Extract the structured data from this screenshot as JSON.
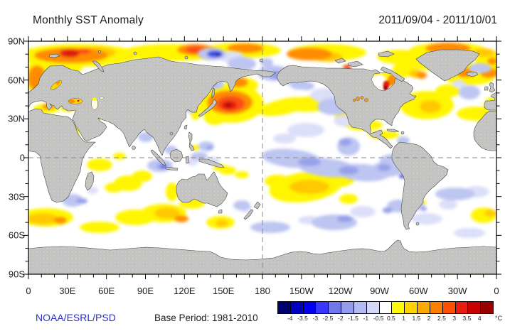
{
  "header": {
    "title": "Monthly SST Anomaly",
    "date_range": "2011/09/04 - 2011/10/01"
  },
  "footer": {
    "credit": "NOAA/ESRL/PSD",
    "base_period": "Base Period: 1981-2010"
  },
  "axes": {
    "lat_labels": [
      "90N",
      "60N",
      "30N",
      "0",
      "30S",
      "60S",
      "90S"
    ],
    "lon_labels": [
      "0",
      "30E",
      "60E",
      "90E",
      "120E",
      "150E",
      "180",
      "150W",
      "120W",
      "90W",
      "60W",
      "30W",
      "0"
    ]
  },
  "colorbar": {
    "unit": "°C",
    "tick_labels": [
      "-4",
      "-3.5",
      "-3",
      "-2.5",
      "-2",
      "-1.5",
      "-1",
      "-0.5",
      "0.5",
      "1",
      "1.5",
      "2",
      "2.5",
      "3",
      "3.5",
      "4"
    ],
    "colors": [
      "#00006e",
      "#0000c3",
      "#0000f0",
      "#3737ff",
      "#7278e8",
      "#949ced",
      "#b5baf2",
      "#d4d7f8",
      "#ffffff",
      "#fffb00",
      "#ffd400",
      "#ffaa00",
      "#ff7e00",
      "#ff4f00",
      "#ea1c12",
      "#c80000",
      "#990000"
    ]
  },
  "map": {
    "projection": "equirectangular 0-360E, 90N-90S",
    "land_color": "#c3c3c3",
    "ocean_color": "#ffffff",
    "graticule": {
      "equator_lat": 0,
      "dateline_lon": 180
    },
    "palette": {
      "Y": "#fff500",
      "G": "#ffc800",
      "O": "#ff8c00",
      "RO": "#fa4d18",
      "R": "#e01d10",
      "DR": "#a00000",
      "L1": "#dcdff8",
      "L2": "#bdc5f1",
      "L3": "#97a1e9",
      "B": "#4050de",
      "NB": "#1818b0",
      "W": "#ffffff"
    },
    "anomalies": [
      [
        70,
        20,
        85,
        16,
        "Y"
      ],
      [
        200,
        16,
        70,
        12,
        "Y"
      ],
      [
        300,
        13,
        55,
        11,
        "Y"
      ],
      [
        420,
        16,
        55,
        12,
        "Y"
      ],
      [
        520,
        22,
        30,
        10,
        "Y"
      ],
      [
        590,
        13,
        55,
        11,
        "Y"
      ],
      [
        650,
        30,
        22,
        16,
        "Y"
      ],
      [
        15,
        50,
        20,
        26,
        "Y"
      ],
      [
        50,
        38,
        26,
        8,
        "Y"
      ],
      [
        600,
        38,
        28,
        13,
        "Y"
      ],
      [
        560,
        30,
        24,
        11,
        "Y"
      ],
      [
        528,
        40,
        16,
        11,
        "Y"
      ],
      [
        620,
        52,
        34,
        10,
        "Y"
      ],
      [
        560,
        90,
        38,
        20,
        "Y"
      ],
      [
        590,
        70,
        18,
        9,
        "Y"
      ],
      [
        630,
        102,
        28,
        10,
        "Y"
      ],
      [
        650,
        95,
        10,
        16,
        "Y"
      ],
      [
        455,
        105,
        24,
        12,
        "Y"
      ],
      [
        472,
        118,
        26,
        8,
        "Y"
      ],
      [
        500,
        132,
        22,
        6,
        "Y"
      ],
      [
        285,
        88,
        46,
        27,
        "Y"
      ],
      [
        300,
        62,
        23,
        11,
        "Y"
      ],
      [
        270,
        70,
        16,
        9,
        "Y"
      ],
      [
        262,
        105,
        16,
        13,
        "Y"
      ],
      [
        235,
        100,
        7,
        11,
        "Y"
      ],
      [
        360,
        92,
        38,
        11,
        "Y",
        -12
      ],
      [
        400,
        88,
        38,
        11,
        "Y",
        -5
      ],
      [
        445,
        85,
        38,
        11,
        "Y",
        8
      ],
      [
        280,
        182,
        12,
        6,
        "Y"
      ],
      [
        300,
        188,
        10,
        5,
        "Y"
      ],
      [
        270,
        178,
        10,
        5,
        "Y"
      ],
      [
        235,
        150,
        6,
        4,
        "Y"
      ],
      [
        390,
        205,
        52,
        21,
        "Y",
        -8
      ],
      [
        430,
        195,
        28,
        11,
        "Y"
      ],
      [
        350,
        197,
        18,
        9,
        "Y"
      ],
      [
        270,
        255,
        20,
        9,
        "Y"
      ],
      [
        230,
        228,
        18,
        8,
        "Y"
      ],
      [
        202,
        212,
        9,
        13,
        "Y"
      ],
      [
        100,
        174,
        18,
        9,
        "Y"
      ],
      [
        140,
        200,
        20,
        11,
        "Y"
      ],
      [
        120,
        206,
        13,
        7,
        "Y"
      ],
      [
        160,
        190,
        14,
        8,
        "Y"
      ],
      [
        128,
        162,
        9,
        5,
        "Y"
      ],
      [
        25,
        248,
        38,
        13,
        "Y"
      ],
      [
        100,
        262,
        28,
        8,
        "Y"
      ],
      [
        150,
        248,
        28,
        11,
        "Y"
      ],
      [
        190,
        242,
        32,
        13,
        "Y"
      ],
      [
        640,
        245,
        18,
        11,
        "Y"
      ],
      [
        450,
        222,
        13,
        7,
        "Y"
      ],
      [
        555,
        227,
        5,
        3,
        "Y"
      ],
      [
        25,
        95,
        18,
        7,
        "Y"
      ],
      [
        55,
        94,
        11,
        5,
        "Y"
      ],
      [
        68,
        125,
        3.5,
        11,
        "Y"
      ],
      [
        98,
        111,
        4,
        2.5,
        "Y"
      ],
      [
        95,
        16,
        28,
        8,
        "G"
      ],
      [
        420,
        22,
        22,
        7,
        "G"
      ],
      [
        640,
        16,
        16,
        6,
        "G"
      ],
      [
        545,
        46,
        9,
        6,
        "G"
      ],
      [
        565,
        92,
        15,
        9,
        "G"
      ],
      [
        462,
        88,
        18,
        8,
        "G"
      ],
      [
        395,
        205,
        28,
        10,
        "G"
      ],
      [
        272,
        256,
        9,
        5,
        "G"
      ],
      [
        195,
        242,
        18,
        8,
        "G"
      ],
      [
        20,
        250,
        22,
        8,
        "G"
      ],
      [
        650,
        242,
        9,
        5,
        "G"
      ],
      [
        60,
        20,
        52,
        11,
        "O"
      ],
      [
        235,
        12,
        26,
        8,
        "O"
      ],
      [
        305,
        10,
        26,
        7,
        "O"
      ],
      [
        395,
        18,
        32,
        9,
        "O"
      ],
      [
        590,
        10,
        32,
        8,
        "O"
      ],
      [
        12,
        52,
        13,
        18,
        "O"
      ],
      [
        615,
        44,
        14,
        7,
        "O"
      ],
      [
        553,
        48,
        7,
        5,
        "O"
      ],
      [
        648,
        45,
        13,
        7,
        "O"
      ],
      [
        283,
        86,
        32,
        17,
        "O"
      ],
      [
        296,
        58,
        13,
        7,
        "O"
      ],
      [
        45,
        252,
        9,
        5,
        "O"
      ],
      [
        215,
        250,
        10,
        5,
        "O"
      ],
      [
        28,
        92,
        9,
        4,
        "O"
      ],
      [
        57,
        93,
        5,
        3,
        "O"
      ],
      [
        652,
        28,
        7,
        5,
        "O"
      ],
      [
        78,
        14,
        9,
        4,
        "RO"
      ],
      [
        235,
        12,
        14,
        5,
        "RO"
      ],
      [
        448,
        37,
        6,
        4,
        "RO"
      ],
      [
        284,
        88,
        20,
        11,
        "RO"
      ],
      [
        58,
        17,
        14,
        6,
        "R"
      ],
      [
        145,
        44,
        7,
        6,
        "R"
      ],
      [
        282,
        90,
        11,
        6,
        "R"
      ],
      [
        58,
        92,
        2.5,
        2,
        "R"
      ],
      [
        281,
        90,
        4,
        2.5,
        "DR"
      ],
      [
        285,
        22,
        18,
        8,
        "L1"
      ],
      [
        370,
        55,
        14,
        8,
        "L1"
      ],
      [
        416,
        76,
        20,
        10,
        "L1"
      ],
      [
        445,
        112,
        16,
        8,
        "L1"
      ],
      [
        390,
        125,
        26,
        10,
        "L1"
      ],
      [
        360,
        137,
        16,
        7,
        "L1"
      ],
      [
        540,
        163,
        18,
        7,
        "L1"
      ],
      [
        470,
        240,
        18,
        8,
        "L1"
      ],
      [
        305,
        235,
        9,
        6,
        "L1"
      ],
      [
        560,
        250,
        22,
        8,
        "L1"
      ],
      [
        590,
        230,
        13,
        7,
        "L1"
      ],
      [
        630,
        212,
        18,
        8,
        "L1"
      ],
      [
        90,
        210,
        8,
        5,
        "L1"
      ],
      [
        260,
        168,
        9,
        5,
        "L1"
      ],
      [
        230,
        170,
        8,
        5,
        "L1"
      ],
      [
        395,
        252,
        16,
        6,
        "L1"
      ],
      [
        620,
        270,
        22,
        7,
        "L1"
      ],
      [
        605,
        60,
        9,
        6,
        "L1"
      ],
      [
        258,
        18,
        20,
        9,
        "L2"
      ],
      [
        300,
        32,
        20,
        10,
        "L2"
      ],
      [
        345,
        45,
        23,
        11,
        "L2"
      ],
      [
        335,
        30,
        9,
        6,
        "L2"
      ],
      [
        380,
        60,
        13,
        8,
        "L2"
      ],
      [
        390,
        63,
        12,
        6,
        "L2"
      ],
      [
        262,
        60,
        13,
        8,
        "L2"
      ],
      [
        228,
        95,
        8,
        6,
        "L2"
      ],
      [
        430,
        92,
        24,
        12,
        "L2"
      ],
      [
        450,
        148,
        16,
        13,
        "L2"
      ],
      [
        370,
        165,
        42,
        13,
        "L2",
        6
      ],
      [
        420,
        178,
        42,
        13,
        "L2",
        6
      ],
      [
        470,
        185,
        38,
        12,
        "L2",
        4
      ],
      [
        505,
        180,
        22,
        11,
        "L2"
      ],
      [
        512,
        168,
        18,
        9,
        "L2"
      ],
      [
        340,
        262,
        28,
        8,
        "L2"
      ],
      [
        430,
        255,
        32,
        11,
        "L2"
      ],
      [
        300,
        231,
        12,
        7,
        "L2"
      ],
      [
        600,
        215,
        28,
        9,
        "L2"
      ],
      [
        520,
        232,
        16,
        9,
        "L2"
      ],
      [
        548,
        232,
        9,
        6,
        "L2"
      ],
      [
        62,
        224,
        15,
        9,
        "L2"
      ],
      [
        185,
        175,
        18,
        9,
        "L2"
      ],
      [
        165,
        135,
        11,
        7,
        "L2"
      ],
      [
        200,
        153,
        9,
        6,
        "L2"
      ],
      [
        250,
        148,
        11,
        7,
        "L2"
      ],
      [
        240,
        162,
        12,
        6,
        "L2"
      ],
      [
        620,
        72,
        15,
        10,
        "L2"
      ],
      [
        635,
        38,
        16,
        7,
        "L2"
      ],
      [
        527,
        140,
        9,
        6,
        "L2"
      ],
      [
        350,
        48,
        11,
        6,
        "L3"
      ],
      [
        258,
        60,
        6,
        4,
        "L3"
      ],
      [
        445,
        142,
        9,
        5,
        "L3"
      ],
      [
        395,
        170,
        16,
        6,
        "L3"
      ],
      [
        450,
        182,
        14,
        6,
        "L3"
      ],
      [
        500,
        178,
        9,
        5,
        "L3"
      ],
      [
        445,
        250,
        11,
        5,
        "L3"
      ],
      [
        505,
        238,
        7,
        4,
        "L3"
      ],
      [
        188,
        176,
        8,
        4,
        "L3"
      ],
      [
        255,
        150,
        5,
        3,
        "L3"
      ],
      [
        556,
        236,
        4,
        3,
        "L3"
      ],
      [
        75,
        225,
        8,
        4,
        "L3"
      ],
      [
        262,
        18,
        11,
        5,
        "B"
      ],
      [
        525,
        190,
        4,
        3,
        "B"
      ],
      [
        190,
        177,
        4,
        2.5,
        "B"
      ],
      [
        267,
        19,
        4.5,
        2.5,
        "NB"
      ],
      [
        499,
        49,
        15,
        7,
        "Y",
        0,
        "hb"
      ],
      [
        511,
        55,
        6,
        8,
        "O",
        0,
        "hb"
      ],
      [
        493,
        55,
        9,
        7,
        "W",
        0,
        "hb"
      ],
      [
        503,
        61,
        5,
        6,
        "R",
        0,
        "hb"
      ],
      [
        502,
        66,
        3,
        3.5,
        "DR",
        0,
        "hb"
      ]
    ]
  }
}
